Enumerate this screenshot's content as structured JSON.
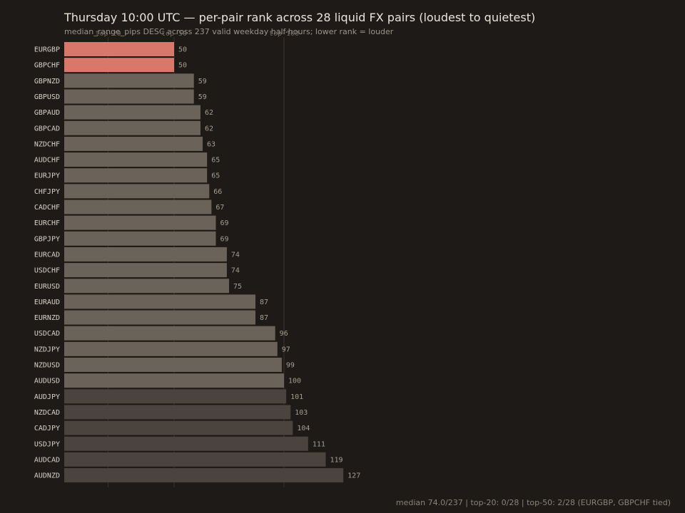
{
  "header": {
    "title": "Thursday 10:00 UTC — per-pair rank across 28 liquid FX pairs (loudest to quietest)",
    "subtitle": "median_range_pips DESC across 237 valid weekday half-hours; lower rank = louder"
  },
  "footer": {
    "text": "median 74.0/237 | top-20: 0/28 | top-50: 2/28 (EURGBP, GBPCHF tied)"
  },
  "colors": {
    "background": "#1e1a17",
    "highlight": "#d9776b",
    "bar": "#6b6259",
    "bar_dim": "#4a433e",
    "gridline": "#3a3430"
  },
  "chart_data": {
    "type": "bar",
    "orientation": "horizontal",
    "title": "Thursday 10:00 UTC — per-pair rank across 28 liquid FX pairs (loudest to quietest)",
    "subtitle": "median_range_pips DESC across 237 valid weekday half-hours; lower rank = louder",
    "xlim": [
      0,
      237
    ],
    "grid": true,
    "gridlines": [
      20,
      50,
      100
    ],
    "tick_labels": [
      "top-20",
      "top-50",
      "top-100"
    ],
    "categories": [
      "EURGBP",
      "GBPCHF",
      "GBPNZD",
      "GBPUSD",
      "GBPAUD",
      "GBPCAD",
      "NZDCHF",
      "AUDCHF",
      "EURJPY",
      "CHFJPY",
      "CADCHF",
      "EURCHF",
      "GBPJPY",
      "EURCAD",
      "USDCHF",
      "EURUSD",
      "EURAUD",
      "EURNZD",
      "USDCAD",
      "NZDJPY",
      "NZDUSD",
      "AUDUSD",
      "AUDJPY",
      "NZDCAD",
      "CADJPY",
      "USDJPY",
      "AUDCAD",
      "AUDNZD"
    ],
    "values": [
      50,
      50,
      59,
      59,
      62,
      62,
      63,
      65,
      65,
      66,
      67,
      69,
      69,
      74,
      74,
      75,
      87,
      87,
      96,
      97,
      99,
      100,
      101,
      103,
      104,
      111,
      119,
      127
    ],
    "highlighted": [
      "EURGBP",
      "GBPCHF"
    ]
  }
}
